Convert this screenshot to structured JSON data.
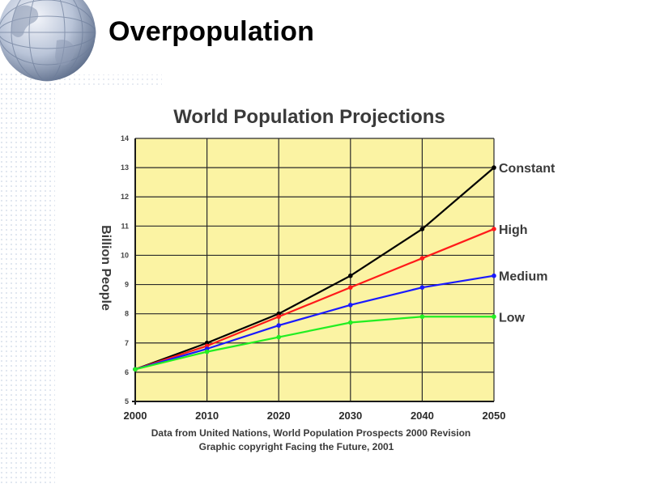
{
  "slide": {
    "title": "Overpopulation"
  },
  "colors": {
    "plot_background": "#fbf3a3",
    "constant": "#000000",
    "high": "#ff1a1a",
    "medium": "#1a1aff",
    "low": "#22ee22"
  },
  "chart_data": {
    "type": "line",
    "title": "World Population Projections",
    "ylabel": "Billion People",
    "xlabel": "",
    "x": [
      2000,
      2010,
      2020,
      2030,
      2040,
      2050
    ],
    "x_tick_labels": [
      "2000",
      "2010",
      "2020",
      "2030",
      "2040",
      "2050"
    ],
    "y_ticks": [
      5,
      6,
      7,
      8,
      9,
      10,
      11,
      12,
      13,
      14
    ],
    "ylim": [
      5,
      14
    ],
    "xlim": [
      2000,
      2050
    ],
    "grid": true,
    "legend_placement": "labels at right end of each line",
    "series": [
      {
        "name": "Constant",
        "color": "#000000",
        "values": [
          6.1,
          7.0,
          8.0,
          9.3,
          10.9,
          13.0
        ]
      },
      {
        "name": "High",
        "color": "#ff1a1a",
        "values": [
          6.1,
          6.9,
          7.9,
          8.9,
          9.9,
          10.9
        ]
      },
      {
        "name": "Medium",
        "color": "#1a1aff",
        "values": [
          6.1,
          6.8,
          7.6,
          8.3,
          8.9,
          9.3
        ]
      },
      {
        "name": "Low",
        "color": "#22ee22",
        "values": [
          6.1,
          6.7,
          7.2,
          7.7,
          7.9,
          7.9
        ]
      }
    ],
    "source_lines": [
      "Data from United Nations, World Population Prospects 2000 Revision",
      "Graphic copyright Facing the Future, 2001"
    ]
  }
}
